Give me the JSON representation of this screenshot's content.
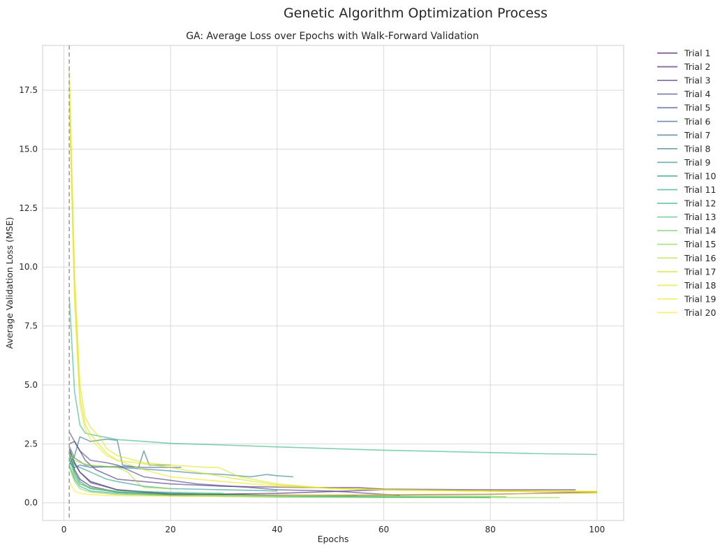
{
  "chart_data": {
    "type": "line",
    "title": "Genetic Algorithm Optimization Process",
    "subtitle": "GA: Average Loss over Epochs with Walk-Forward Validation",
    "xlabel": "Epochs",
    "ylabel": "Average Validation Loss (MSE)",
    "xlim": [
      -4,
      105
    ],
    "ylim": [
      -0.75,
      19.4
    ],
    "xticks": [
      0,
      20,
      40,
      60,
      80,
      100
    ],
    "yticks": [
      0.0,
      2.5,
      5.0,
      7.5,
      10.0,
      12.5,
      15.0,
      17.5
    ],
    "xtick_labels": [
      "0",
      "20",
      "40",
      "60",
      "80",
      "100"
    ],
    "ytick_labels": [
      "0.0",
      "2.5",
      "5.0",
      "7.5",
      "10.0",
      "12.5",
      "15.0",
      "17.5"
    ],
    "grid": true,
    "legend_position": "outside-right",
    "reference_line": {
      "x": 1,
      "style": "dashed",
      "color": "#999999"
    },
    "series": [
      {
        "name": "Trial 1",
        "color": "#440154",
        "points": [
          [
            1,
            2.3
          ],
          [
            2,
            1.7
          ],
          [
            3,
            1.3
          ],
          [
            5,
            0.9
          ],
          [
            10,
            0.55
          ],
          [
            20,
            0.35
          ],
          [
            40,
            0.32
          ],
          [
            60,
            0.33
          ],
          [
            80,
            0.36
          ],
          [
            100,
            0.45
          ]
        ]
      },
      {
        "name": "Trial 2",
        "color": "#481769",
        "points": [
          [
            1,
            2.1
          ],
          [
            2,
            1.4
          ],
          [
            3,
            1.0
          ],
          [
            5,
            0.7
          ],
          [
            10,
            0.45
          ],
          [
            20,
            0.35
          ],
          [
            40,
            0.4
          ],
          [
            60,
            0.55
          ],
          [
            80,
            0.5
          ],
          [
            100,
            0.47
          ]
        ]
      },
      {
        "name": "Trial 3",
        "color": "#472a7a",
        "points": [
          [
            1,
            2.5
          ],
          [
            2,
            2.6
          ],
          [
            3,
            2.2
          ],
          [
            4,
            1.8
          ],
          [
            6,
            1.4
          ],
          [
            10,
            1.0
          ],
          [
            15,
            0.9
          ],
          [
            20,
            0.8
          ],
          [
            30,
            0.7
          ],
          [
            45,
            0.65
          ],
          [
            55,
            0.65
          ],
          [
            60,
            0.58
          ],
          [
            80,
            0.55
          ],
          [
            96,
            0.55
          ]
        ]
      },
      {
        "name": "Trial 4",
        "color": "#433d84",
        "points": [
          [
            1,
            3.0
          ],
          [
            2,
            2.6
          ],
          [
            3,
            2.2
          ],
          [
            5,
            1.8
          ],
          [
            8,
            1.7
          ],
          [
            10,
            1.6
          ],
          [
            15,
            1.1
          ],
          [
            20,
            0.95
          ],
          [
            25,
            0.8
          ],
          [
            35,
            0.65
          ],
          [
            40,
            0.55
          ],
          [
            50,
            0.5
          ],
          [
            63,
            0.32
          ]
        ]
      },
      {
        "name": "Trial 5",
        "color": "#3d4e8a",
        "points": [
          [
            1,
            2.2
          ],
          [
            2,
            1.7
          ],
          [
            3,
            1.3
          ],
          [
            5,
            0.85
          ],
          [
            10,
            0.55
          ],
          [
            20,
            0.4
          ],
          [
            30,
            0.35
          ],
          [
            45,
            0.3
          ],
          [
            55,
            0.3
          ]
        ]
      },
      {
        "name": "Trial 6",
        "color": "#355e8d",
        "points": [
          [
            1,
            1.7
          ],
          [
            2,
            1.5
          ],
          [
            3,
            1.6
          ],
          [
            5,
            1.5
          ],
          [
            10,
            1.55
          ],
          [
            15,
            1.5
          ],
          [
            20,
            1.5
          ],
          [
            22,
            1.5
          ]
        ]
      },
      {
        "name": "Trial 7",
        "color": "#2e6d8e",
        "points": [
          [
            1,
            1.6
          ],
          [
            2,
            2.0
          ],
          [
            3,
            2.8
          ],
          [
            5,
            2.6
          ],
          [
            8,
            2.7
          ],
          [
            10,
            2.65
          ],
          [
            11,
            1.6
          ],
          [
            14,
            1.5
          ],
          [
            15,
            2.2
          ],
          [
            16,
            1.6
          ],
          [
            18,
            1.6
          ],
          [
            20,
            1.6
          ]
        ]
      },
      {
        "name": "Trial 8",
        "color": "#297b8e",
        "points": [
          [
            1,
            2.4
          ],
          [
            2,
            1.9
          ],
          [
            4,
            1.6
          ],
          [
            6,
            1.55
          ],
          [
            10,
            1.5
          ],
          [
            14,
            1.45
          ],
          [
            20,
            1.35
          ],
          [
            25,
            1.25
          ],
          [
            30,
            1.2
          ],
          [
            35,
            1.1
          ],
          [
            38,
            1.2
          ],
          [
            40,
            1.15
          ],
          [
            43,
            1.1
          ]
        ]
      },
      {
        "name": "Trial 9",
        "color": "#23898e",
        "points": [
          [
            1,
            1.9
          ],
          [
            2,
            1.3
          ],
          [
            3,
            0.9
          ],
          [
            5,
            0.6
          ],
          [
            10,
            0.45
          ],
          [
            20,
            0.4
          ],
          [
            40,
            0.3
          ],
          [
            60,
            0.25
          ],
          [
            80,
            0.23
          ]
        ]
      },
      {
        "name": "Trial 10",
        "color": "#1f978b",
        "points": [
          [
            1,
            2.0
          ],
          [
            2,
            1.6
          ],
          [
            3,
            1.5
          ],
          [
            5,
            1.3
          ],
          [
            8,
            1.0
          ],
          [
            10,
            0.9
          ],
          [
            15,
            0.7
          ],
          [
            20,
            0.6
          ],
          [
            30,
            0.55
          ],
          [
            40,
            0.5
          ]
        ]
      },
      {
        "name": "Trial 11",
        "color": "#21a585",
        "points": [
          [
            1,
            1.6
          ],
          [
            2,
            1.0
          ],
          [
            3,
            0.7
          ],
          [
            5,
            0.5
          ],
          [
            10,
            0.4
          ],
          [
            20,
            0.3
          ],
          [
            40,
            0.25
          ],
          [
            60,
            0.23
          ],
          [
            80,
            0.22
          ]
        ]
      },
      {
        "name": "Trial 12",
        "color": "#2eb37c",
        "points": [
          [
            1,
            8.7
          ],
          [
            2,
            4.7
          ],
          [
            3,
            3.3
          ],
          [
            4,
            2.95
          ],
          [
            5,
            2.9
          ],
          [
            10,
            2.68
          ],
          [
            20,
            2.52
          ],
          [
            30,
            2.45
          ],
          [
            40,
            2.37
          ],
          [
            50,
            2.3
          ],
          [
            60,
            2.23
          ],
          [
            70,
            2.18
          ],
          [
            80,
            2.13
          ],
          [
            90,
            2.08
          ],
          [
            100,
            2.05
          ]
        ]
      },
      {
        "name": "Trial 13",
        "color": "#46c06f",
        "points": [
          [
            1,
            2.2
          ],
          [
            2,
            1.2
          ],
          [
            3,
            0.8
          ],
          [
            5,
            0.6
          ],
          [
            10,
            0.5
          ],
          [
            20,
            0.45
          ],
          [
            30,
            0.4
          ]
        ]
      },
      {
        "name": "Trial 14",
        "color": "#65cb5e",
        "points": [
          [
            1,
            1.9
          ],
          [
            2,
            1.1
          ],
          [
            3,
            0.8
          ],
          [
            5,
            0.65
          ],
          [
            10,
            0.45
          ],
          [
            20,
            0.35
          ],
          [
            40,
            0.3
          ],
          [
            60,
            0.28
          ],
          [
            80,
            0.27
          ],
          [
            83,
            0.26
          ]
        ]
      },
      {
        "name": "Trial 15",
        "color": "#89d548",
        "points": [
          [
            1,
            1.5
          ],
          [
            2,
            0.9
          ],
          [
            3,
            0.6
          ],
          [
            5,
            0.45
          ],
          [
            10,
            0.35
          ],
          [
            20,
            0.3
          ],
          [
            40,
            0.25
          ],
          [
            60,
            0.23
          ],
          [
            80,
            0.22
          ],
          [
            93,
            0.22
          ]
        ]
      },
      {
        "name": "Trial 16",
        "color": "#b0dd2f",
        "points": [
          [
            1,
            2.1
          ],
          [
            2,
            1.8
          ],
          [
            3,
            1.7
          ],
          [
            5,
            1.6
          ],
          [
            8,
            1.55
          ],
          [
            10,
            1.5
          ],
          [
            12,
            1.3
          ],
          [
            14,
            0.8
          ],
          [
            15,
            0.65
          ],
          [
            20,
            0.6
          ]
        ]
      },
      {
        "name": "Trial 17",
        "color": "#d8e219",
        "points": [
          [
            1,
            17.0
          ],
          [
            2,
            9.0
          ],
          [
            3,
            4.5
          ],
          [
            4,
            3.3
          ],
          [
            5,
            2.9
          ],
          [
            8,
            2.1
          ],
          [
            10,
            1.8
          ],
          [
            20,
            1.5
          ],
          [
            30,
            1.1
          ],
          [
            40,
            0.75
          ],
          [
            50,
            0.62
          ],
          [
            60,
            0.55
          ],
          [
            80,
            0.5
          ],
          [
            100,
            0.47
          ]
        ]
      },
      {
        "name": "Trial 18",
        "color": "#dde318",
        "points": [
          [
            1,
            18.4
          ],
          [
            2,
            9.7
          ],
          [
            3,
            5.0
          ],
          [
            4,
            3.6
          ],
          [
            5,
            3.2
          ],
          [
            7,
            2.7
          ],
          [
            8,
            2.3
          ],
          [
            10,
            2.0
          ],
          [
            15,
            1.7
          ],
          [
            20,
            1.6
          ],
          [
            27,
            1.5
          ],
          [
            29,
            1.5
          ],
          [
            31,
            1.3
          ],
          [
            33,
            1.1
          ],
          [
            40,
            0.8
          ],
          [
            50,
            0.6
          ],
          [
            60,
            0.55
          ],
          [
            80,
            0.5
          ],
          [
            100,
            0.45
          ]
        ]
      },
      {
        "name": "Trial 19",
        "color": "#efe51c",
        "points": [
          [
            1,
            17.8
          ],
          [
            2,
            8.5
          ],
          [
            3,
            4.2
          ],
          [
            4,
            3.1
          ],
          [
            5,
            2.7
          ],
          [
            8,
            2.0
          ],
          [
            10,
            1.8
          ],
          [
            15,
            1.4
          ],
          [
            20,
            1.1
          ],
          [
            30,
            0.9
          ],
          [
            40,
            0.7
          ],
          [
            60,
            0.55
          ],
          [
            80,
            0.5
          ],
          [
            100,
            0.48
          ]
        ]
      },
      {
        "name": "Trial 20",
        "color": "#fde725",
        "points": [
          [
            1,
            0.9
          ],
          [
            2,
            0.5
          ],
          [
            3,
            0.4
          ],
          [
            5,
            0.35
          ],
          [
            10,
            0.3
          ],
          [
            20,
            0.28
          ],
          [
            40,
            0.3
          ],
          [
            60,
            0.35
          ],
          [
            80,
            0.38
          ],
          [
            100,
            0.4
          ]
        ]
      }
    ]
  }
}
